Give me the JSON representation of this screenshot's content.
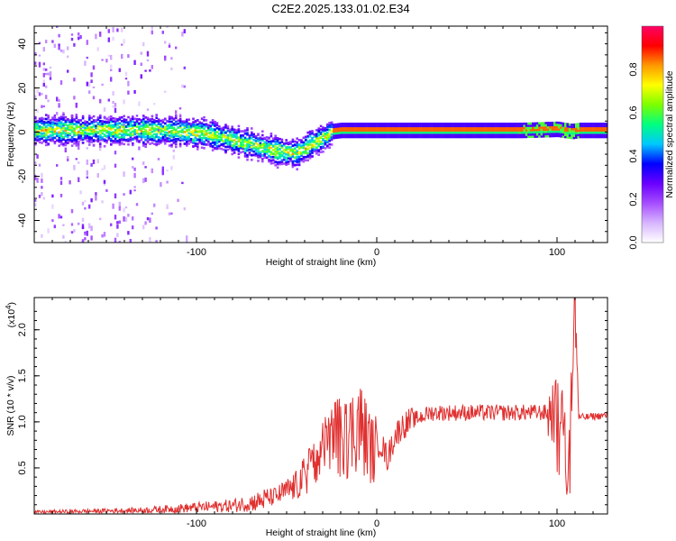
{
  "title": "C2E2.2025.133.01.02.E34",
  "chart_data": [
    {
      "type": "heatmap",
      "xlabel": "Height of straight line (km)",
      "ylabel": "Frequency (Hz)",
      "xlim": [
        -190,
        128
      ],
      "ylim": [
        -50,
        48
      ],
      "xticks": [
        -100,
        0,
        100
      ],
      "yticks": [
        -40,
        -20,
        0,
        20,
        40
      ],
      "colorbar": {
        "label": "Normalized spectral amplitude",
        "range": [
          0,
          1
        ],
        "ticks": [
          "0.0",
          "0.2",
          "0.4",
          "0.6",
          "0.8"
        ],
        "colors": [
          "#ffffff",
          "#d7b5ff",
          "#a64dff",
          "#6a00ff",
          "#0000ff",
          "#00c8ff",
          "#00ff80",
          "#7cff00",
          "#ffff00",
          "#ff9900",
          "#ff0000",
          "#ff0066"
        ]
      },
      "ridge": {
        "x": [
          -190,
          -160,
          -130,
          -110,
          -95,
          -85,
          -75,
          -65,
          -55,
          -45,
          -35,
          -28,
          -25,
          -20,
          -10,
          0,
          20,
          50,
          80,
          100,
          108,
          112,
          128
        ],
        "freq": [
          1.5,
          1.5,
          1.5,
          1,
          0,
          -2,
          -4,
          -6,
          -8,
          -9,
          -4,
          -1,
          1,
          1.5,
          1.5,
          1.5,
          1.5,
          1.5,
          1.5,
          2,
          1,
          1.5,
          1.5
        ]
      }
    },
    {
      "type": "line",
      "xlabel": "Height of straight line (km)",
      "ylabel": "SNR (10 * v/v)",
      "y_multiplier": "(x10",
      "y_multiplier_exp": "4",
      "xlim": [
        -190,
        128
      ],
      "ylim": [
        0,
        2.35
      ],
      "xticks": [
        -100,
        0,
        100
      ],
      "yticks": [
        "0.5",
        "1.0",
        "1.5",
        "2.0"
      ],
      "color": "#e03030",
      "series": [
        {
          "name": "SNR",
          "x": [
            -190,
            -160,
            -130,
            -100,
            -80,
            -65,
            -55,
            -45,
            -38,
            -32,
            -26,
            -22,
            -18,
            -14,
            -10,
            -6,
            -2,
            2,
            6,
            10,
            14,
            18,
            24,
            30,
            40,
            50,
            60,
            70,
            80,
            90,
            95,
            100,
            104,
            106,
            108,
            110,
            112,
            116,
            120,
            128
          ],
          "y": [
            0.02,
            0.03,
            0.04,
            0.07,
            0.09,
            0.14,
            0.2,
            0.3,
            0.45,
            0.6,
            0.75,
            0.85,
            0.78,
            0.88,
            1.0,
            0.82,
            0.68,
            0.78,
            0.6,
            0.85,
            0.95,
            1.0,
            1.05,
            1.1,
            1.1,
            1.1,
            1.1,
            1.1,
            1.1,
            1.1,
            1.1,
            1.12,
            1.1,
            0.2,
            1.3,
            2.3,
            1.05,
            1.05,
            1.06,
            1.07
          ]
        }
      ]
    }
  ]
}
